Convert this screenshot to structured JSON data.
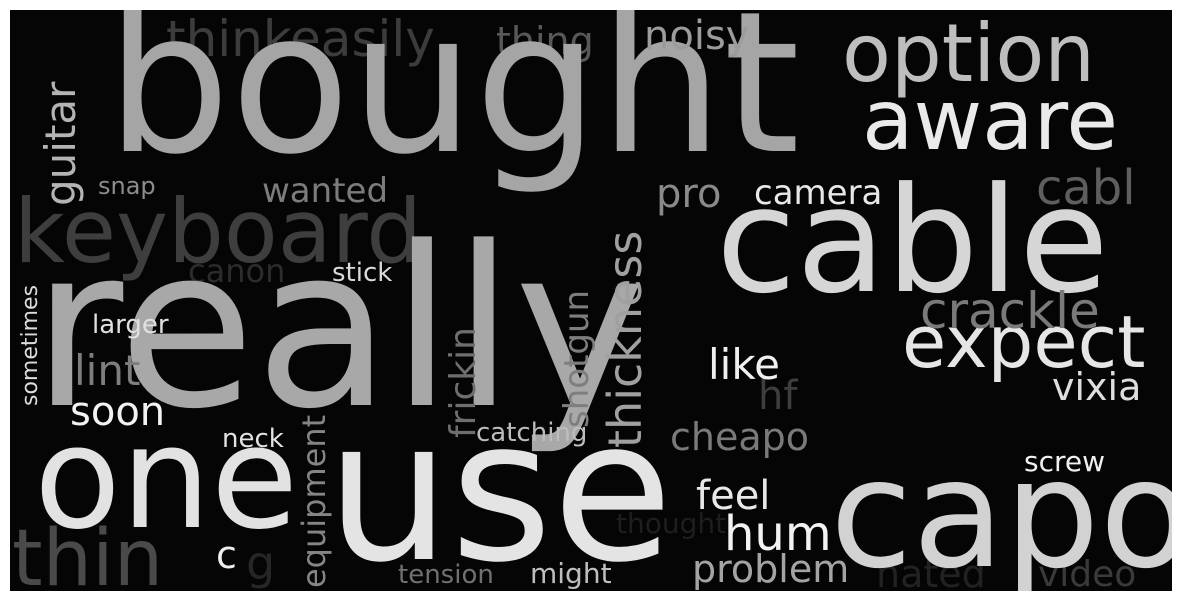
{
  "wordcloud": {
    "words": {
      "really": {
        "text": "really",
        "color": "#a8a8a8"
      },
      "bought": {
        "text": "bought",
        "color": "#a5a5a5"
      },
      "use": {
        "text": "use",
        "color": "#e4e4e4"
      },
      "capo": {
        "text": "capo",
        "color": "#d2d2d2"
      },
      "cable": {
        "text": "cable",
        "color": "#d6d6d6"
      },
      "one": {
        "text": "one",
        "color": "#e2e2e2"
      },
      "keyboard": {
        "text": "keyboard",
        "color": "#3e3e3e"
      },
      "thin": {
        "text": "thin",
        "color": "#4a4a4a"
      },
      "option": {
        "text": "option",
        "color": "#bebebe"
      },
      "aware": {
        "text": "aware",
        "color": "#eaeaea"
      },
      "expect": {
        "text": "expect",
        "color": "#e6e6e6"
      },
      "thinkeasily": {
        "text": "thinkeasily",
        "color": "#3c3c3c"
      },
      "thing": {
        "text": "thing",
        "color": "#585858"
      },
      "noisy": {
        "text": "noisy",
        "color": "#9c9c9c"
      },
      "guitar": {
        "text": "guitar",
        "color": "#b4b4b4"
      },
      "snap": {
        "text": "snap",
        "color": "#8c8c8c"
      },
      "wanted": {
        "text": "wanted",
        "color": "#7c7c7c"
      },
      "pro": {
        "text": "pro",
        "color": "#8a8a8a"
      },
      "camera": {
        "text": "camera",
        "color": "#e8e8e8"
      },
      "cabl": {
        "text": "cabl",
        "color": "#5e5e5e"
      },
      "thickness": {
        "text": "thickness",
        "color": "#a0a0a0"
      },
      "canon": {
        "text": "canon",
        "color": "#2c2c2c"
      },
      "stick": {
        "text": "stick",
        "color": "#dadada"
      },
      "crackle": {
        "text": "crackle",
        "color": "#7a7a7a"
      },
      "shotgun": {
        "text": "shotgun",
        "color": "#7e7e7e"
      },
      "frickin": {
        "text": "frickin",
        "color": "#6e6e6e"
      },
      "sometimes": {
        "text": "sometimes",
        "color": "#dcdcdc"
      },
      "larger": {
        "text": "larger",
        "color": "#e0e0e0"
      },
      "lint": {
        "text": "lint",
        "color": "#7e7e7e"
      },
      "like": {
        "text": "like",
        "color": "#f0f0f0"
      },
      "hf": {
        "text": "hf",
        "color": "#3e3e3e"
      },
      "vixia": {
        "text": "vixia",
        "color": "#dedede"
      },
      "soon": {
        "text": "soon",
        "color": "#f2f2f2"
      },
      "equipment": {
        "text": "equipment",
        "color": "#858585"
      },
      "catching": {
        "text": "catching",
        "color": "#bdbdbd"
      },
      "cheapo": {
        "text": "cheapo",
        "color": "#7a7a7a"
      },
      "neck": {
        "text": "neck",
        "color": "#e2e2e2"
      },
      "screw": {
        "text": "screw",
        "color": "#f0f0f0"
      },
      "feel": {
        "text": "feel",
        "color": "#e8e8e8"
      },
      "hum": {
        "text": "hum",
        "color": "#f2f2f2"
      },
      "c": {
        "text": "c",
        "color": "#eeeeee"
      },
      "g": {
        "text": "g",
        "color": "#262626"
      },
      "thought": {
        "text": "thought",
        "color": "#1e1e1e"
      },
      "problem": {
        "text": "problem",
        "color": "#a4a4a4"
      },
      "tension": {
        "text": "tension",
        "color": "#707070"
      },
      "might": {
        "text": "might",
        "color": "#bebebe"
      },
      "hated": {
        "text": "hated",
        "color": "#222222"
      },
      "video": {
        "text": "video",
        "color": "#3a3a3a"
      }
    }
  }
}
